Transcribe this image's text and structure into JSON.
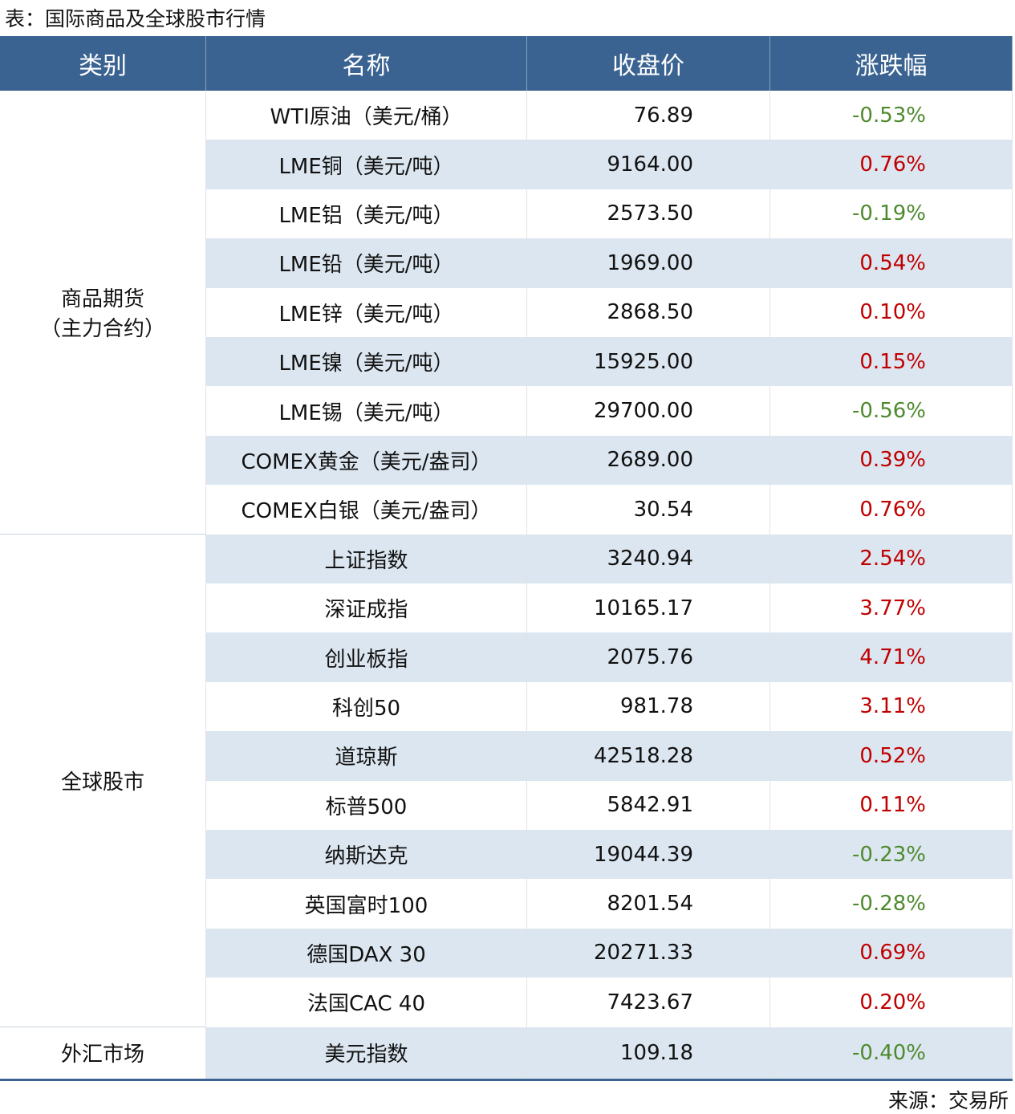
{
  "title": "表：国际商品及全球股市行情",
  "table": {
    "header": [
      "类别",
      "名称",
      "收盘价",
      "涨跌幅"
    ],
    "groups": [
      {
        "category": [
          "商品期货",
          "（主力合约）"
        ],
        "rows": [
          [
            "WTI原油（美元/桶）",
            "76.89",
            "-0.53%"
          ],
          [
            "LME铜（美元/吨）",
            "9164.00",
            "0.76%"
          ],
          [
            "LME铝（美元/吨）",
            "2573.50",
            "-0.19%"
          ],
          [
            "LME铅（美元/吨）",
            "1969.00",
            "0.54%"
          ],
          [
            "LME锌（美元/吨）",
            "2868.50",
            "0.10%"
          ],
          [
            "LME镍（美元/吨）",
            "15925.00",
            "0.15%"
          ],
          [
            "LME锡（美元/吨）",
            "29700.00",
            "-0.56%"
          ],
          [
            "COMEX黄金（美元/盎司）",
            "2689.00",
            "0.39%"
          ],
          [
            "COMEX白银（美元/盎司）",
            "30.54",
            "0.76%"
          ]
        ]
      },
      {
        "category": [
          "全球股市"
        ],
        "rows": [
          [
            "上证指数",
            "3240.94",
            "2.54%"
          ],
          [
            "深证成指",
            "10165.17",
            "3.77%"
          ],
          [
            "创业板指",
            "2075.76",
            "4.71%"
          ],
          [
            "科创50",
            "981.78",
            "3.11%"
          ],
          [
            "道琼斯",
            "42518.28",
            "0.52%"
          ],
          [
            "标普500",
            "5842.91",
            "0.11%"
          ],
          [
            "纳斯达克",
            "19044.39",
            "-0.23%"
          ],
          [
            "英国富时100",
            "8201.54",
            "-0.28%"
          ],
          [
            "德国DAX 30",
            "20271.33",
            "0.69%"
          ],
          [
            "法国CAC 40",
            "7423.67",
            "0.20%"
          ]
        ]
      },
      {
        "category": [
          "外汇市场"
        ],
        "rows": [
          [
            "美元指数",
            "109.18",
            "-0.40%"
          ]
        ]
      }
    ]
  },
  "source": "来源：交易所"
}
